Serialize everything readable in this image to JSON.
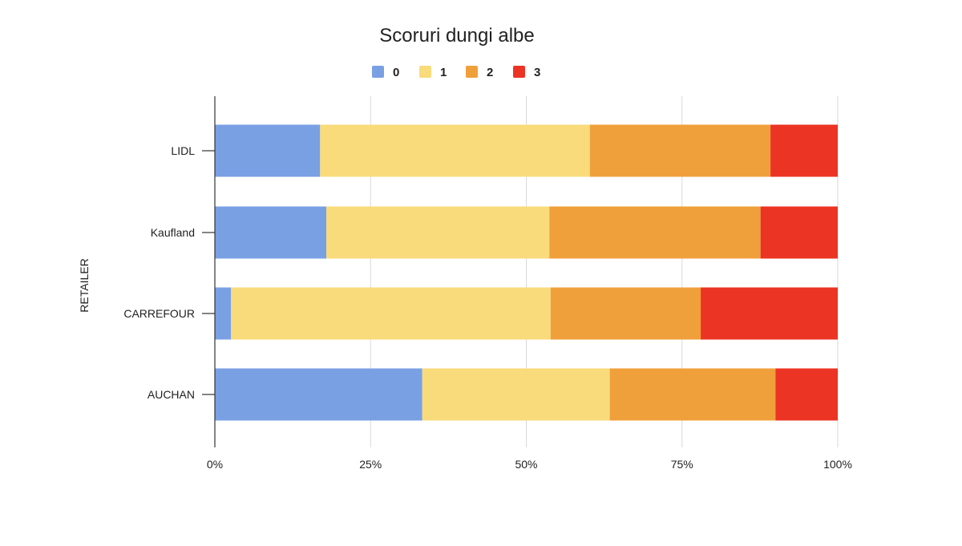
{
  "chart_data": {
    "type": "bar",
    "orientation": "horizontal",
    "stacked": "percent",
    "title": "Scoruri dungi albe",
    "ylabel": "RETAILER",
    "xlabel": "",
    "categories": [
      "LIDL",
      "Kaufland",
      "CARREFOUR",
      "AUCHAN"
    ],
    "series": [
      {
        "name": "0",
        "color": "#7aa0e4",
        "values": [
          16.9,
          17.9,
          2.6,
          33.3
        ]
      },
      {
        "name": "1",
        "color": "#f9db7b",
        "values": [
          43.3,
          35.8,
          51.3,
          30.1
        ]
      },
      {
        "name": "2",
        "color": "#f0a03b",
        "values": [
          29.0,
          33.9,
          24.1,
          26.6
        ]
      },
      {
        "name": "3",
        "color": "#ec3424",
        "values": [
          10.8,
          12.4,
          22.0,
          10.0
        ]
      }
    ],
    "xlim": [
      0,
      100
    ],
    "xticks": [
      "0%",
      "25%",
      "50%",
      "75%",
      "100%"
    ],
    "grid": true,
    "legend_position": "top"
  }
}
